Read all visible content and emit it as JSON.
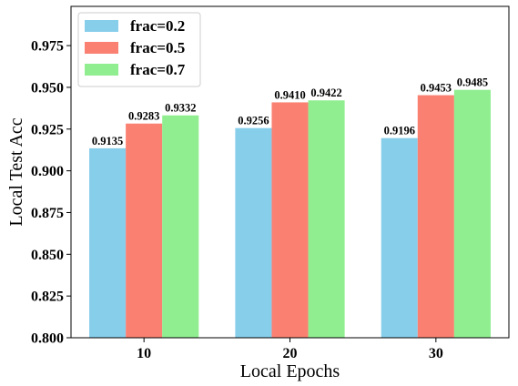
{
  "chart_data": {
    "type": "bar",
    "xlabel": "Local Epochs",
    "ylabel": "Local Test Acc",
    "categories": [
      "10",
      "20",
      "30"
    ],
    "ylim": [
      0.8,
      0.9985
    ],
    "yticks": [
      "0.800",
      "0.825",
      "0.850",
      "0.875",
      "0.900",
      "0.925",
      "0.950",
      "0.975"
    ],
    "series": [
      {
        "name": "frac=0.2",
        "color": "#87CEEB",
        "values": [
          0.9135,
          0.9256,
          0.9196
        ],
        "labels": [
          "0.9135",
          "0.9256",
          "0.9196"
        ]
      },
      {
        "name": "frac=0.5",
        "color": "#FA8072",
        "values": [
          0.9283,
          0.941,
          0.9453
        ],
        "labels": [
          "0.9283",
          "0.9410",
          "0.9453"
        ]
      },
      {
        "name": "frac=0.7",
        "color": "#90EE90",
        "values": [
          0.9332,
          0.9422,
          0.9485
        ],
        "labels": [
          "0.9332",
          "0.9422",
          "0.9485"
        ]
      }
    ],
    "legend": "upper-left",
    "grid": false
  }
}
